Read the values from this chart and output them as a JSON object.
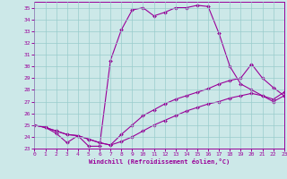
{
  "xlabel": "Windchill (Refroidissement éolien,°C)",
  "bg_color": "#cce8e8",
  "line_color": "#990099",
  "grid_color": "#99cccc",
  "xlim": [
    0,
    23
  ],
  "ylim": [
    23,
    35.5
  ],
  "xticks": [
    0,
    1,
    2,
    3,
    4,
    5,
    6,
    7,
    8,
    9,
    10,
    11,
    12,
    13,
    14,
    15,
    16,
    17,
    18,
    19,
    20,
    21,
    22,
    23
  ],
  "yticks": [
    23,
    24,
    25,
    26,
    27,
    28,
    29,
    30,
    31,
    32,
    33,
    34,
    35
  ],
  "line1": {
    "x": [
      0,
      1,
      2,
      3,
      4,
      5,
      6,
      7,
      8,
      9,
      10,
      11,
      12,
      13,
      14,
      15,
      16,
      17,
      18,
      19,
      20,
      21,
      22,
      23
    ],
    "y": [
      25.0,
      24.8,
      24.3,
      23.5,
      24.1,
      23.2,
      23.2,
      30.5,
      33.1,
      34.8,
      35.0,
      34.3,
      34.6,
      35.0,
      35.0,
      35.2,
      35.1,
      32.8,
      30.0,
      28.5,
      28.0,
      27.5,
      27.2,
      27.8
    ]
  },
  "line2": {
    "x": [
      0,
      1,
      2,
      3,
      4,
      5,
      6,
      7,
      8,
      9,
      10,
      11,
      12,
      13,
      14,
      15,
      16,
      17,
      18,
      19,
      20,
      21,
      22,
      23
    ],
    "y": [
      25.0,
      24.8,
      24.5,
      24.2,
      24.1,
      23.8,
      23.5,
      23.3,
      24.2,
      25.0,
      25.8,
      26.3,
      26.8,
      27.2,
      27.5,
      27.8,
      28.1,
      28.5,
      28.8,
      29.0,
      30.2,
      29.0,
      28.2,
      27.5
    ]
  },
  "line3": {
    "x": [
      0,
      1,
      2,
      3,
      4,
      5,
      6,
      7,
      8,
      9,
      10,
      11,
      12,
      13,
      14,
      15,
      16,
      17,
      18,
      19,
      20,
      21,
      22,
      23
    ],
    "y": [
      25.0,
      24.8,
      24.5,
      24.2,
      24.1,
      23.8,
      23.5,
      23.3,
      23.6,
      24.0,
      24.5,
      25.0,
      25.4,
      25.8,
      26.2,
      26.5,
      26.8,
      27.0,
      27.3,
      27.5,
      27.7,
      27.5,
      27.0,
      27.5
    ]
  }
}
